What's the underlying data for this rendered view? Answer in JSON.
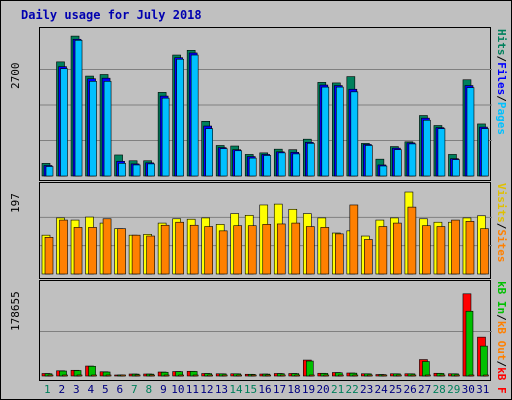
{
  "title": "Daily usage for July 2018",
  "colors": {
    "background": "#c0c0c0",
    "gridline": "#808080",
    "hits": "#00805c",
    "files": "#0000ff",
    "pages": "#00c0ff",
    "visits": "#ffff00",
    "sites": "#ff8000",
    "kb_in": "#00c000",
    "kb_out": "#ff8000",
    "kb_f": "#ff0000",
    "day_weekday": "#000080",
    "day_weekend": "#00805c"
  },
  "chart_data": [
    {
      "type": "bar",
      "ymax_label": "2700",
      "ylim": [
        0,
        2700
      ],
      "series": [
        {
          "name": "Hits",
          "values": [
            240,
            2170,
            2660,
            1900,
            1930,
            400,
            290,
            290,
            1590,
            2300,
            2390,
            1040,
            580,
            570,
            410,
            440,
            510,
            500,
            700,
            1780,
            1770,
            1890,
            620,
            320,
            560,
            650,
            1150,
            960,
            410,
            1830,
            990
          ]
        },
        {
          "name": "Files",
          "values": [
            200,
            2080,
            2600,
            1850,
            1860,
            280,
            230,
            250,
            1520,
            2250,
            2340,
            950,
            540,
            500,
            370,
            410,
            460,
            450,
            640,
            1730,
            1720,
            1650,
            600,
            210,
            530,
            630,
            1100,
            920,
            330,
            1720,
            930
          ]
        },
        {
          "name": "Pages",
          "values": [
            180,
            2040,
            2580,
            1800,
            1800,
            240,
            210,
            230,
            1480,
            2220,
            2300,
            900,
            520,
            480,
            340,
            390,
            440,
            420,
            620,
            1690,
            1690,
            1600,
            580,
            190,
            500,
            610,
            1060,
            900,
            310,
            1680,
            900
          ]
        }
      ]
    },
    {
      "type": "bar",
      "ymax_label": "197",
      "ylim": [
        0,
        197
      ],
      "series": [
        {
          "name": "Visits",
          "values": [
            90,
            130,
            125,
            132,
            118,
            105,
            90,
            92,
            118,
            128,
            127,
            130,
            115,
            140,
            136,
            160,
            162,
            150,
            140,
            130,
            95,
            100,
            88,
            125,
            130,
            190,
            128,
            120,
            120,
            130,
            135
          ]
        },
        {
          "name": "Sites",
          "values": [
            85,
            125,
            108,
            108,
            128,
            105,
            90,
            88,
            113,
            120,
            113,
            110,
            100,
            112,
            112,
            115,
            116,
            118,
            110,
            108,
            93,
            160,
            80,
            110,
            118,
            155,
            112,
            110,
            125,
            122,
            105
          ]
        }
      ]
    },
    {
      "type": "bar",
      "ymax_label": "178655",
      "ylim": [
        0,
        178655
      ],
      "series": [
        {
          "name": "KB F",
          "values": [
            5000,
            10500,
            11500,
            20000,
            8500,
            2000,
            4000,
            4000,
            8000,
            9000,
            9500,
            5000,
            4500,
            4500,
            3500,
            4000,
            5000,
            5000,
            32000,
            5500,
            7000,
            6000,
            4500,
            3000,
            4500,
            4500,
            33000,
            5500,
            4500,
            165000,
            78000
          ]
        },
        {
          "name": "KB In",
          "values": [
            4500,
            10000,
            11000,
            19500,
            8000,
            1800,
            3800,
            3800,
            7500,
            8700,
            9200,
            4800,
            4300,
            4300,
            3300,
            3800,
            4700,
            4800,
            30000,
            5200,
            6500,
            5700,
            4300,
            2800,
            4300,
            4300,
            29000,
            5200,
            4300,
            130000,
            60000
          ]
        },
        {
          "name": "KB Out",
          "values": [
            300,
            400,
            350,
            500,
            400,
            200,
            300,
            300,
            400,
            400,
            400,
            300,
            300,
            300,
            300,
            300,
            300,
            300,
            500,
            300,
            300,
            300,
            300,
            200,
            300,
            300,
            600,
            300,
            300,
            2000,
            1000
          ]
        }
      ]
    }
  ],
  "x_axis": {
    "days": [
      "1",
      "2",
      "3",
      "4",
      "5",
      "6",
      "7",
      "8",
      "9",
      "10",
      "11",
      "12",
      "13",
      "14",
      "15",
      "16",
      "17",
      "18",
      "19",
      "20",
      "21",
      "22",
      "23",
      "24",
      "25",
      "26",
      "27",
      "28",
      "29",
      "30",
      "31"
    ],
    "weekend_days": [
      "1",
      "7",
      "8",
      "14",
      "15",
      "21",
      "22",
      "28",
      "29"
    ]
  },
  "legends": {
    "top": [
      {
        "label": "Hits",
        "color": "#00805c"
      },
      {
        "label": "Files",
        "color": "#0000ff"
      },
      {
        "label": "Pages",
        "color": "#00c0ff"
      }
    ],
    "middle": [
      {
        "label": "Visits",
        "color": "#ffff00"
      },
      {
        "label": "Sites",
        "color": "#ff8000"
      }
    ],
    "bottom": [
      {
        "label": "kB In",
        "color": "#00c000"
      },
      {
        "label": "kB Out",
        "color": "#ff8000"
      },
      {
        "label": "kB F",
        "color": "#ff0000"
      }
    ],
    "separator": "/"
  }
}
